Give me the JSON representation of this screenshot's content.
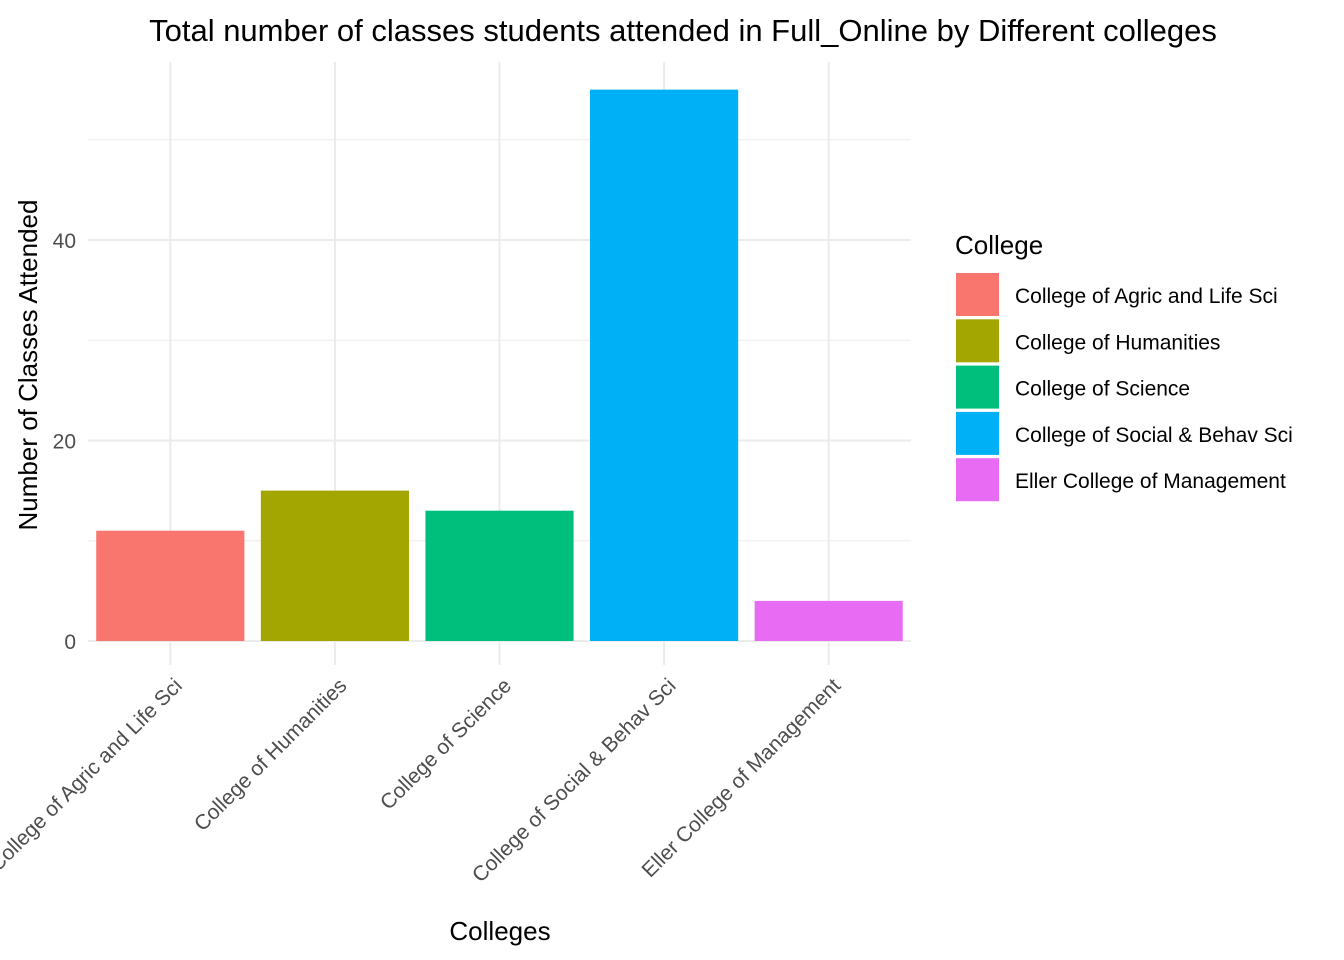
{
  "chart_data": {
    "type": "bar",
    "title": "Total number of classes students attended in  Full_Online by Different colleges",
    "xlabel": "Colleges",
    "ylabel": "Number of Classes Attended",
    "categories": [
      "College of Agric and Life Sci",
      "College of Humanities",
      "College of Science",
      "College of Social & Behav Sci",
      "Eller College of Management"
    ],
    "values": [
      11,
      15,
      13,
      55,
      4
    ],
    "colors": [
      "#F8766D",
      "#A3A500",
      "#00BF7D",
      "#00B0F6",
      "#E76BF3"
    ],
    "ylim": [
      0,
      58
    ],
    "y_ticks": [
      0,
      20,
      40
    ],
    "grid": true,
    "legend": {
      "title": "College",
      "placement": "right",
      "entries": [
        "College of Agric and Life Sci",
        "College of Humanities",
        "College of Science",
        "College of Social & Behav Sci",
        "Eller College of Management"
      ]
    }
  }
}
